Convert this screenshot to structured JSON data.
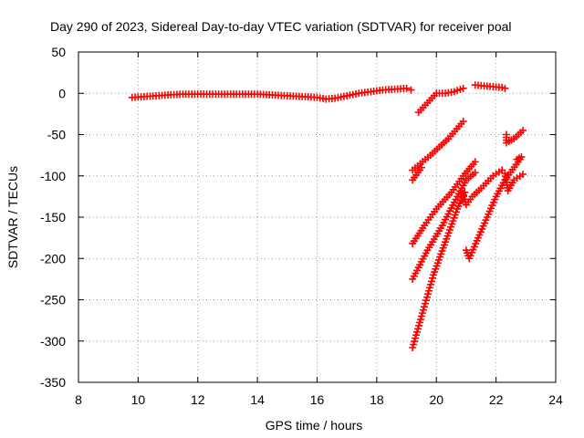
{
  "chart_data": {
    "type": "scatter",
    "title": "Day 290 of 2023, Sidereal Day-to-day VTEC variation (SDTVAR) for receiver poal",
    "xlabel": "GPS time / hours",
    "ylabel": "SDTVAR / TECUs",
    "xlim": [
      8,
      24
    ],
    "ylim": [
      -350,
      50
    ],
    "xticks": [
      "8",
      "10",
      "12",
      "14",
      "16",
      "18",
      "20",
      "22",
      "24"
    ],
    "yticks": [
      "50",
      "0",
      "-50",
      "-100",
      "-150",
      "-200",
      "-250",
      "-300",
      "-350"
    ],
    "grid": true,
    "marker": "plus",
    "marker_color": "#ff0000",
    "series": [
      {
        "values": [
          [
            9.8,
            -5
          ],
          [
            10.2,
            -4
          ],
          [
            10.6,
            -3
          ],
          [
            11.0,
            -2
          ],
          [
            11.5,
            -1
          ],
          [
            12.0,
            -1
          ],
          [
            12.5,
            -1
          ],
          [
            13.0,
            -1
          ],
          [
            13.5,
            -1
          ],
          [
            14.0,
            -1
          ],
          [
            14.5,
            -2
          ],
          [
            15.0,
            -3
          ],
          [
            15.5,
            -4
          ],
          [
            16.0,
            -5
          ],
          [
            16.3,
            -7
          ],
          [
            16.6,
            -6
          ],
          [
            17.0,
            -3
          ],
          [
            17.4,
            0
          ],
          [
            17.8,
            2
          ],
          [
            18.2,
            4
          ],
          [
            18.6,
            5
          ],
          [
            19.0,
            6
          ],
          [
            19.15,
            4
          ]
        ]
      },
      {
        "values": [
          [
            19.4,
            -23
          ],
          [
            20.0,
            0
          ],
          [
            20.3,
            0
          ],
          [
            20.6,
            2
          ],
          [
            20.9,
            6
          ]
        ]
      },
      {
        "values": [
          [
            21.3,
            10
          ],
          [
            21.6,
            9
          ],
          [
            21.9,
            8
          ],
          [
            22.2,
            7
          ],
          [
            22.3,
            6
          ]
        ]
      },
      {
        "values": [
          [
            19.2,
            -93
          ],
          [
            19.8,
            -75
          ],
          [
            20.4,
            -55
          ],
          [
            20.9,
            -34
          ]
        ]
      },
      {
        "values": [
          [
            19.2,
            -105
          ],
          [
            19.5,
            -90
          ]
        ]
      },
      {
        "values": [
          [
            19.2,
            -182
          ],
          [
            19.6,
            -160
          ],
          [
            20.0,
            -140
          ],
          [
            20.5,
            -120
          ],
          [
            20.9,
            -100
          ],
          [
            21.3,
            -83
          ]
        ]
      },
      {
        "values": [
          [
            19.2,
            -225
          ],
          [
            19.7,
            -190
          ],
          [
            20.2,
            -160
          ],
          [
            20.7,
            -125
          ],
          [
            21.0,
            -105
          ],
          [
            21.3,
            -96
          ]
        ]
      },
      {
        "values": [
          [
            19.2,
            -308
          ],
          [
            19.5,
            -270
          ],
          [
            19.9,
            -220
          ],
          [
            20.3,
            -180
          ],
          [
            20.7,
            -140
          ],
          [
            20.95,
            -120
          ]
        ]
      },
      {
        "values": [
          [
            20.85,
            -118
          ],
          [
            21.0,
            -135
          ],
          [
            21.2,
            -125
          ],
          [
            21.5,
            -115
          ],
          [
            21.9,
            -100
          ],
          [
            22.2,
            -93
          ]
        ]
      },
      {
        "values": [
          [
            21.0,
            -190
          ],
          [
            21.1,
            -200
          ],
          [
            21.4,
            -175
          ],
          [
            21.7,
            -150
          ],
          [
            22.0,
            -125
          ],
          [
            22.3,
            -105
          ],
          [
            22.8,
            -80
          ]
        ]
      },
      {
        "values": [
          [
            22.3,
            -97
          ],
          [
            22.4,
            -118
          ],
          [
            22.6,
            -105
          ],
          [
            22.9,
            -98
          ]
        ]
      },
      {
        "values": [
          [
            22.35,
            -50
          ],
          [
            22.35,
            -60
          ],
          [
            22.6,
            -55
          ],
          [
            22.9,
            -45
          ]
        ]
      },
      {
        "values": [
          [
            22.7,
            -80
          ],
          [
            22.85,
            -77
          ]
        ]
      }
    ]
  }
}
